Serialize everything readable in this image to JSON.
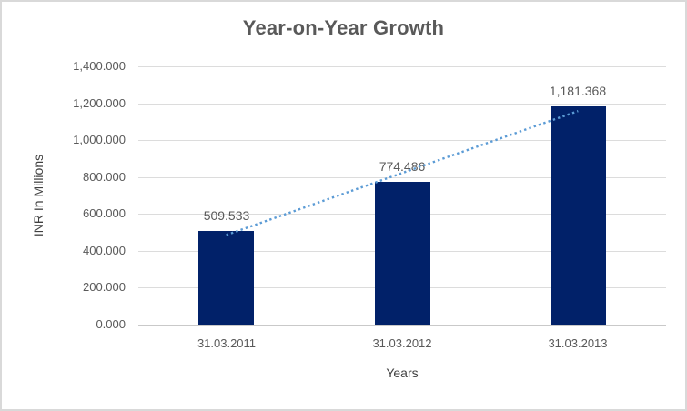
{
  "window": {
    "background": "#FFFFFF",
    "border_color": "#D9D9D9"
  },
  "chart_data": {
    "type": "bar",
    "title": "Year-on-Year Growth",
    "xlabel": "Years",
    "ylabel": "INR In Millions",
    "categories": [
      "31.03.2011",
      "31.03.2012",
      "31.03.2013"
    ],
    "values": [
      509.533,
      774.486,
      1181.368
    ],
    "data_labels": [
      "509.533",
      "774.486",
      "1,181.368"
    ],
    "ylim": [
      0,
      1400
    ],
    "ytick_step": 200,
    "ytick_labels": [
      "0.000",
      "200.000",
      "400.000",
      "600.000",
      "800.000",
      "1,000.000",
      "1,200.000",
      "1,400.000"
    ],
    "grid": true,
    "legend": "none",
    "trendline": {
      "type": "linear",
      "style": "dotted"
    },
    "colors": {
      "bar": "#012169",
      "trendline": "#5B9BD5",
      "gridline": "#DCDCDC",
      "axis_line": "#C9C9C9",
      "tick_text": "#595959",
      "title_text": "#595959"
    }
  }
}
